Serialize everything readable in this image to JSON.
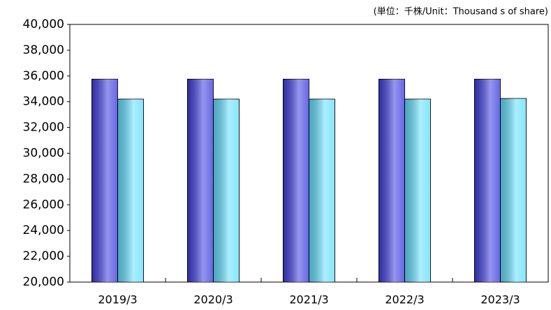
{
  "chart_data": {
    "type": "bar",
    "subtitle": "(単位：千株/Unit：Thousand s  of share)",
    "categories": [
      "2019/3",
      "2020/3",
      "2021/3",
      "2022/3",
      "2023/3"
    ],
    "series": [
      {
        "color": "#4040e0",
        "values": [
          35750,
          35750,
          35750,
          35750,
          35750
        ]
      },
      {
        "color": "#66e0ff",
        "values": [
          34200,
          34200,
          34200,
          34200,
          34250
        ]
      }
    ],
    "ylim": [
      20000,
      40000
    ],
    "yticks": [
      {
        "value": 20000,
        "label": "20,000"
      },
      {
        "value": 22000,
        "label": "22,000"
      },
      {
        "value": 24000,
        "label": "24,000"
      },
      {
        "value": 26000,
        "label": "26,000"
      },
      {
        "value": 28000,
        "label": "28,000"
      },
      {
        "value": 30000,
        "label": "30,000"
      },
      {
        "value": 32000,
        "label": "32,000"
      },
      {
        "value": 34000,
        "label": "34,000"
      },
      {
        "value": 36000,
        "label": "36,000"
      },
      {
        "value": 38000,
        "label": "38,000"
      },
      {
        "value": 40000,
        "label": "40,000"
      }
    ],
    "grid": false
  }
}
